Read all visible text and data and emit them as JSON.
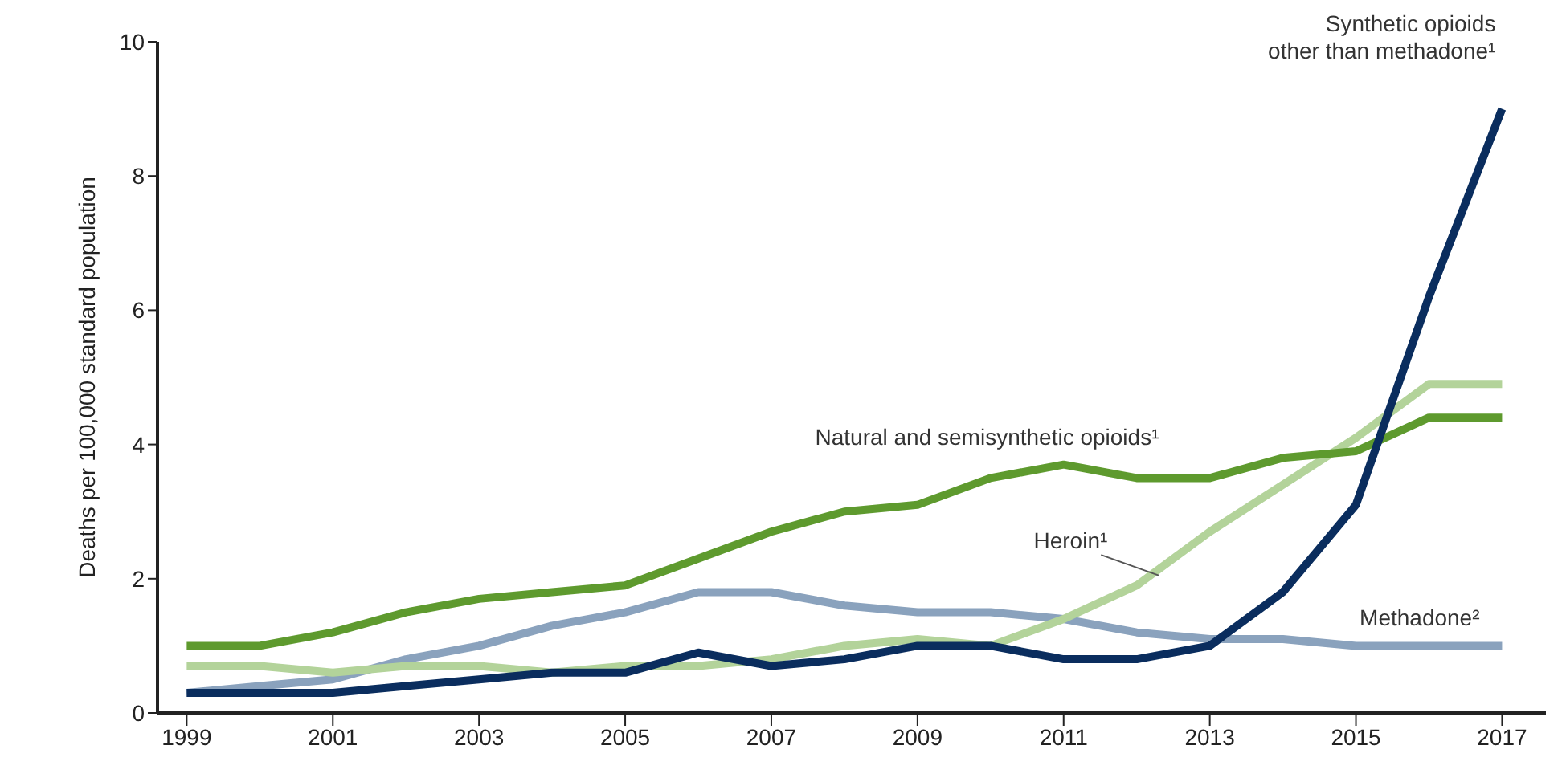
{
  "chart_data": {
    "type": "line",
    "ylabel": "Deaths per 100,000 standard population",
    "x": [
      1999,
      2000,
      2001,
      2002,
      2003,
      2004,
      2005,
      2006,
      2007,
      2008,
      2009,
      2010,
      2011,
      2012,
      2013,
      2014,
      2015,
      2016,
      2017
    ],
    "series": [
      {
        "name": "Synthetic opioids other than methadone¹",
        "color": "#0a2d5e",
        "values": [
          0.3,
          0.3,
          0.3,
          0.4,
          0.5,
          0.6,
          0.6,
          0.9,
          0.7,
          0.8,
          1.0,
          1.0,
          0.8,
          0.8,
          1.0,
          1.8,
          3.1,
          6.2,
          9.0
        ]
      },
      {
        "name": "Natural and semisynthetic opioids¹",
        "color": "#5e9a2e",
        "values": [
          1.0,
          1.0,
          1.2,
          1.5,
          1.7,
          1.8,
          1.9,
          2.3,
          2.7,
          3.0,
          3.1,
          3.5,
          3.7,
          3.5,
          3.5,
          3.8,
          3.9,
          4.4,
          4.4
        ]
      },
      {
        "name": "Heroin¹",
        "color": "#b3d39a",
        "values": [
          0.7,
          0.7,
          0.6,
          0.7,
          0.7,
          0.6,
          0.7,
          0.7,
          0.8,
          1.0,
          1.1,
          1.0,
          1.4,
          1.9,
          2.7,
          3.4,
          4.1,
          4.9,
          4.9
        ]
      },
      {
        "name": "Methadone²",
        "color": "#8aa2bd",
        "values": [
          0.3,
          0.4,
          0.5,
          0.8,
          1.0,
          1.3,
          1.5,
          1.8,
          1.8,
          1.6,
          1.5,
          1.5,
          1.4,
          1.2,
          1.1,
          1.1,
          1.0,
          1.0,
          1.0
        ]
      }
    ],
    "xlim": [
      1998.6,
      2017.6
    ],
    "xticks": [
      1999,
      2001,
      2003,
      2005,
      2007,
      2009,
      2011,
      2013,
      2015,
      2017
    ],
    "ylim": [
      0,
      10
    ],
    "yticks": [
      0,
      2,
      4,
      6,
      8,
      10
    ],
    "grid": false,
    "legend": false,
    "marker": "none",
    "line_style": "solid"
  }
}
